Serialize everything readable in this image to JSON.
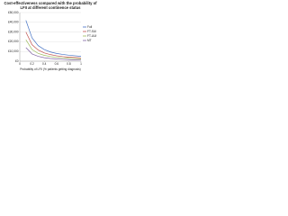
{
  "chart_data": {
    "type": "line",
    "title": "Cost-effectiveness compared with the probability of LFII at different continence status",
    "x_label": "Probability of LFII (% patients getting diagnosis)",
    "x": [
      0.1,
      0.2,
      0.3,
      0.4,
      0.5,
      0.6,
      0.7,
      0.8,
      0.9,
      1
    ],
    "series": [
      {
        "name": "Full",
        "color": "#4472c4",
        "values": [
          42000,
          24000,
          16000,
          12000,
          9500,
          8000,
          7000,
          6200,
          5600,
          5000
        ]
      },
      {
        "name": "FT-SUI",
        "color": "#c0504d",
        "values": [
          30000,
          17000,
          11500,
          8500,
          6800,
          5600,
          4800,
          4200,
          3800,
          3400
        ]
      },
      {
        "name": "FT-UUI",
        "color": "#9bbb59",
        "values": [
          22000,
          12000,
          8000,
          6000,
          4800,
          4000,
          3400,
          3000,
          2700,
          2400
        ]
      },
      {
        "name": "MT",
        "color": "#8064a2",
        "values": [
          14000,
          7500,
          5000,
          3600,
          2800,
          2300,
          1900,
          1600,
          1400,
          1200
        ]
      }
    ],
    "xlim": [
      0,
      1
    ],
    "xticks": [
      0,
      0.2,
      0.4,
      0.6,
      0.8,
      1
    ],
    "ylim": [
      0,
      50000
    ],
    "yticks": [
      {
        "value": 0,
        "label": "£0"
      },
      {
        "value": 10000,
        "label": "£10,000"
      },
      {
        "value": 20000,
        "label": "£20,000"
      },
      {
        "value": 30000,
        "label": "£30,000"
      },
      {
        "value": 40000,
        "label": "£40,000"
      },
      {
        "value": 50000,
        "label": "£50,000"
      }
    ],
    "grid": true,
    "legend": "right"
  }
}
